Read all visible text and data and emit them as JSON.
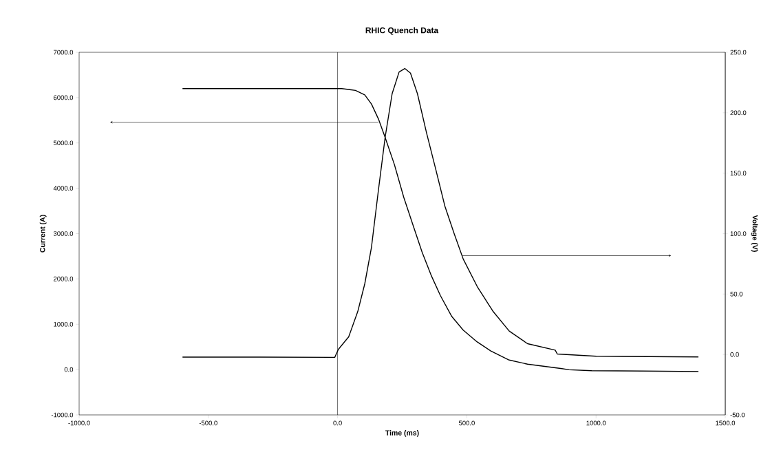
{
  "chart_data": {
    "type": "line",
    "title": "RHIC Quench Data",
    "xlabel": "Time (ms)",
    "ylabel": "Current (A)",
    "y2label": "Voltage (V)",
    "xlim": [
      -1000,
      1500
    ],
    "xticks": [
      {
        "value": -1000,
        "label": "-1000.0"
      },
      {
        "value": -500,
        "label": "-500.0"
      },
      {
        "value": 0,
        "label": "0.0"
      },
      {
        "value": 500,
        "label": "500.0"
      },
      {
        "value": 1000,
        "label": "1000.0"
      },
      {
        "value": 1500,
        "label": "1500.0"
      }
    ],
    "ylim": [
      -1000,
      7000
    ],
    "yticks": [
      {
        "value": -1000,
        "label": "-1000.0"
      },
      {
        "value": 0,
        "label": "0.0"
      },
      {
        "value": 1000,
        "label": "1000.0"
      },
      {
        "value": 2000,
        "label": "2000.0"
      },
      {
        "value": 3000,
        "label": "3000.0"
      },
      {
        "value": 4000,
        "label": "4000.0"
      },
      {
        "value": 5000,
        "label": "5000.0"
      },
      {
        "value": 6000,
        "label": "6000.0"
      },
      {
        "value": 7000,
        "label": "7000.0"
      }
    ],
    "y2lim": [
      -50,
      250
    ],
    "y2ticks": [
      {
        "value": -50,
        "label": "-50.0"
      },
      {
        "value": 0,
        "label": "0.0"
      },
      {
        "value": 50,
        "label": "50.0"
      },
      {
        "value": 100,
        "label": "100.0"
      },
      {
        "value": 150,
        "label": "150.0"
      },
      {
        "value": 200,
        "label": "200.0"
      },
      {
        "value": 250,
        "label": "250.0"
      }
    ],
    "ref_lines": [
      {
        "axis": "x",
        "value": 0,
        "color": "#000000"
      }
    ],
    "series": [
      {
        "color": "#000000",
        "x": [
          -600,
          -300,
          0,
          16,
          69,
          105,
          131,
          158,
          184,
          220,
          256,
          291,
          327,
          362,
          398,
          442,
          486,
          540,
          593,
          664,
          735,
          868,
          895,
          983,
          1179,
          1396
        ],
        "values": [
          6200,
          6200,
          6200,
          6200,
          6160,
          6060,
          5860,
          5530,
          5120,
          4520,
          3800,
          3200,
          2590,
          2080,
          1630,
          1170,
          870,
          610,
          410,
          210,
          120,
          20,
          -3,
          -24,
          -33,
          -44
        ]
      },
      {
        "color": "#000000",
        "axis": "y2",
        "x": [
          -600,
          -300,
          -11,
          3,
          43,
          78,
          105,
          131,
          158,
          184,
          211,
          238,
          260,
          282,
          309,
          344,
          380,
          415,
          451,
          486,
          540,
          602,
          664,
          735,
          842,
          850,
          1001,
          1396
        ],
        "values": [
          -2.2,
          -2.2,
          -2.4,
          4.2,
          14.6,
          35.5,
          58.3,
          88.6,
          136,
          179.7,
          215.7,
          233.7,
          236.6,
          232.8,
          215.7,
          183.5,
          153,
          122.8,
          100,
          79,
          56.3,
          35.5,
          19.4,
          8.9,
          3.6,
          0.4,
          -1.5,
          -2
        ]
      }
    ]
  }
}
